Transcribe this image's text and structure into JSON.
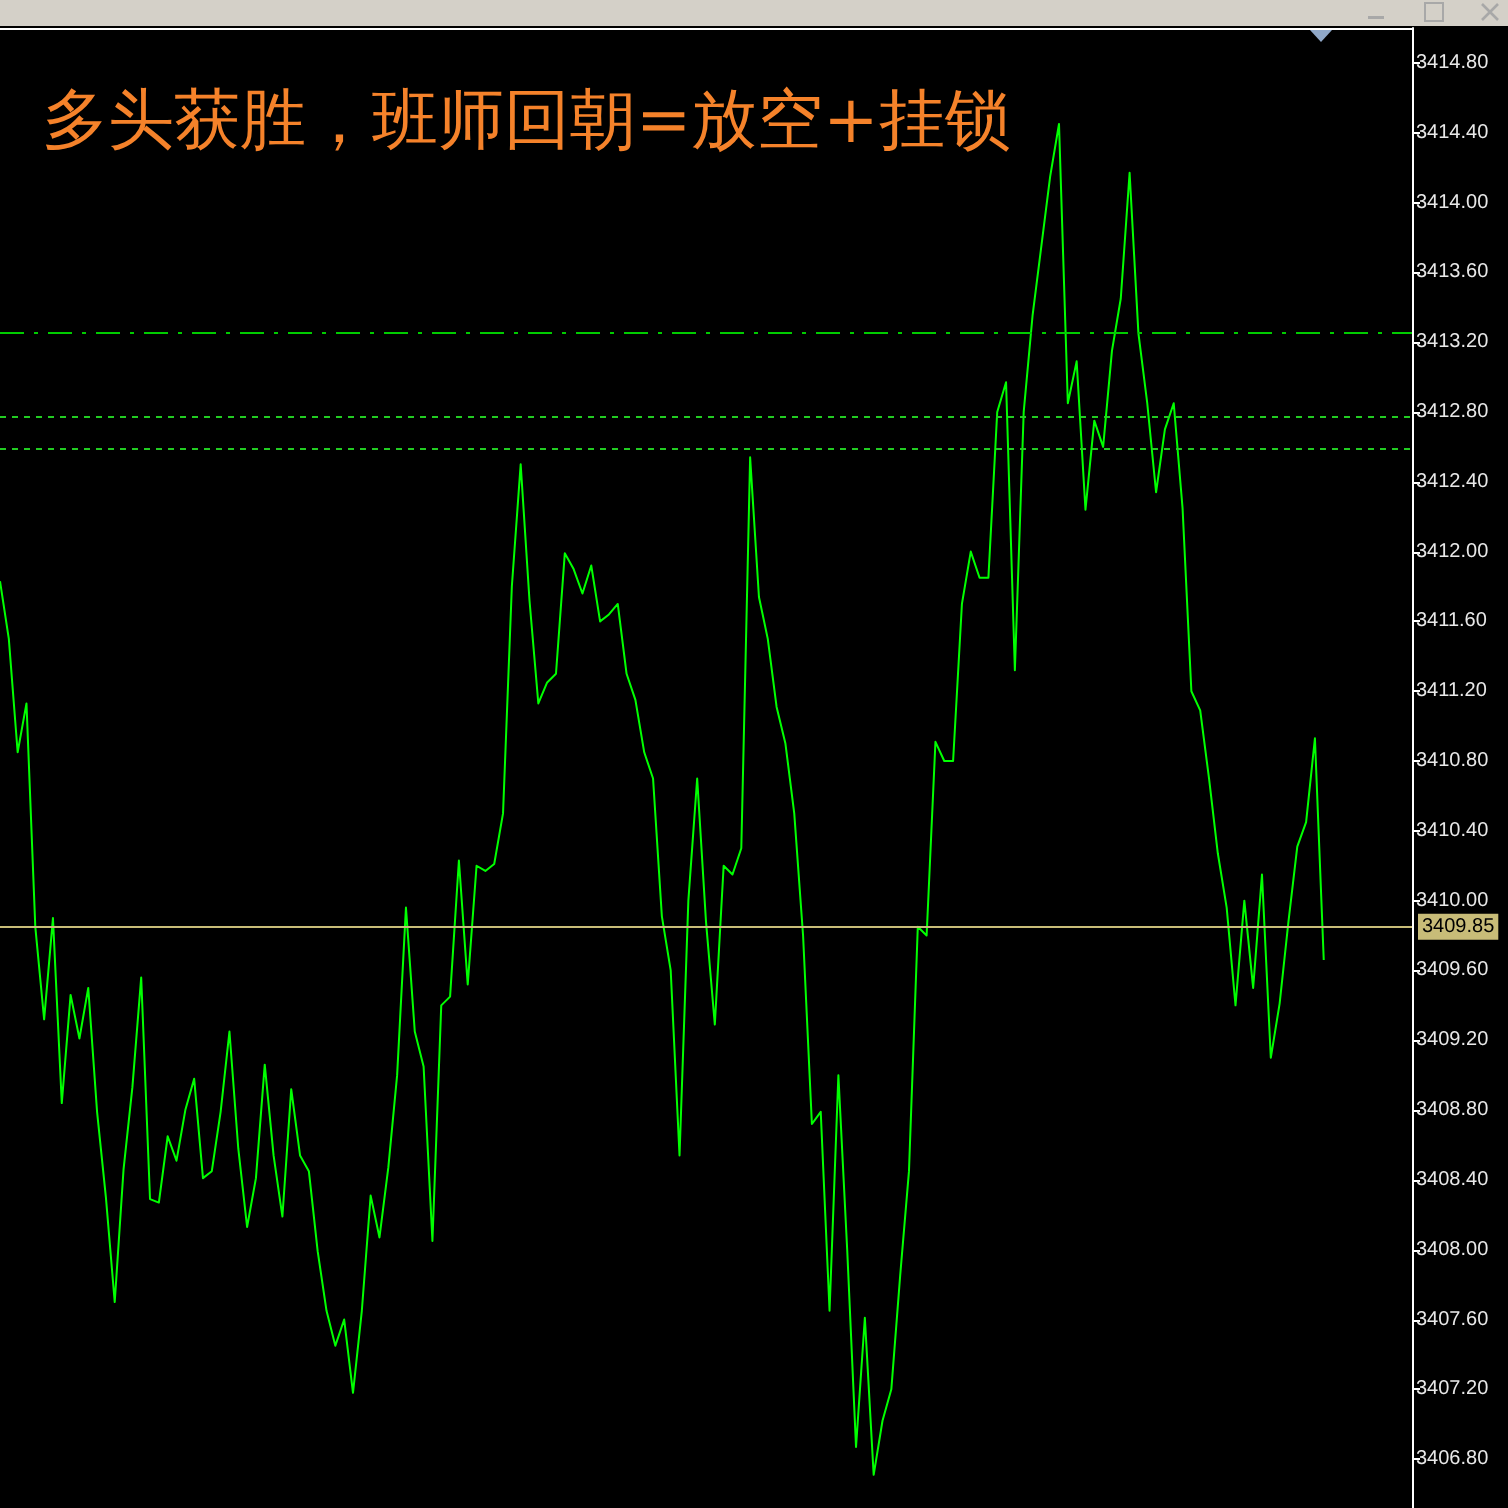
{
  "chart_data": {
    "type": "line",
    "title": "多头获胜，班师回朝=放空+挂锁",
    "categories": [
      null,
      null,
      null,
      null,
      null,
      null,
      null,
      null,
      null,
      null,
      null,
      null,
      null,
      null,
      null,
      null,
      null,
      null,
      null,
      null,
      null,
      null,
      null,
      null,
      null,
      null,
      null,
      null,
      null,
      null,
      null,
      null,
      null,
      null,
      null,
      null,
      null,
      null,
      null,
      null,
      null,
      null,
      null,
      null,
      null,
      null,
      null,
      null,
      null,
      null,
      null,
      null,
      null,
      null,
      null,
      null,
      null,
      null,
      null,
      null,
      null,
      null,
      null,
      null,
      null,
      null,
      null,
      null,
      null,
      null,
      null,
      null,
      null,
      null,
      null,
      null,
      null,
      null,
      null,
      null,
      null,
      null,
      null,
      null,
      null,
      null,
      null,
      null,
      null,
      null,
      null,
      null,
      null,
      null,
      null,
      null,
      null,
      null,
      null,
      null,
      null,
      null,
      null,
      null,
      null,
      null,
      null,
      null,
      null,
      null,
      null,
      null,
      null,
      null,
      null,
      null,
      null,
      null,
      null,
      null,
      null,
      null,
      null,
      null,
      null,
      null,
      null,
      null,
      null,
      null,
      null,
      null,
      null,
      null,
      null,
      null,
      null,
      null,
      null,
      null,
      null,
      null,
      null,
      null,
      null,
      null,
      null,
      null,
      null,
      null,
      null,
      null,
      null,
      null,
      null,
      null,
      null,
      null,
      null,
      null,
      null
    ],
    "series": [
      {
        "color": "#00ff00",
        "values": [
          3411.83,
          3411.5,
          3410.85,
          3411.13,
          3409.85,
          3409.32,
          3409.9,
          3408.84,
          3409.46,
          3409.21,
          3409.5,
          3408.79,
          3408.3,
          3407.7,
          3408.46,
          3408.93,
          3409.56,
          3408.29,
          3408.27,
          3408.65,
          3408.51,
          3408.8,
          3408.98,
          3408.41,
          3408.45,
          3408.79,
          3409.25,
          3408.58,
          3408.13,
          3408.41,
          3409.06,
          3408.54,
          3408.19,
          3408.92,
          3408.54,
          3408.45,
          3407.99,
          3407.65,
          3407.45,
          3407.6,
          3407.18,
          3407.65,
          3408.31,
          3408.07,
          3408.47,
          3409.0,
          3409.96,
          3409.25,
          3409.05,
          3408.05,
          3409.4,
          3409.45,
          3410.23,
          3409.52,
          3410.2,
          3410.17,
          3410.21,
          3410.5,
          3411.8,
          3412.5,
          3411.72,
          3411.13,
          3411.25,
          3411.3,
          3411.99,
          3411.9,
          3411.76,
          3411.92,
          3411.6,
          3411.64,
          3411.7,
          3411.3,
          3411.15,
          3410.85,
          3410.7,
          3409.91,
          3409.6,
          3408.54,
          3410.0,
          3410.7,
          3409.88,
          3409.29,
          3410.2,
          3410.15,
          3410.3,
          3412.54,
          3411.74,
          3411.5,
          3411.11,
          3410.9,
          3410.5,
          3409.8,
          3408.72,
          3408.79,
          3407.65,
          3409.0,
          3408.0,
          3406.87,
          3407.61,
          3406.71,
          3407.02,
          3407.2,
          3407.85,
          3408.45,
          3409.85,
          3409.8,
          3410.91,
          3410.8,
          3410.8,
          3411.7,
          3412.0,
          3411.85,
          3411.85,
          3412.8,
          3412.97,
          3411.32,
          3412.8,
          3413.35,
          3413.75,
          3414.15,
          3414.45,
          3412.85,
          3413.09,
          3412.24,
          3412.75,
          3412.6,
          3413.15,
          3413.45,
          3414.17,
          3413.25,
          3412.85,
          3412.34,
          3412.7,
          3412.85,
          3412.25,
          3411.2,
          3411.09,
          3410.7,
          3410.27,
          3409.96,
          3409.4,
          3410.0,
          3409.5,
          3410.15,
          3409.1,
          3409.41,
          3409.88,
          3410.31,
          3410.45,
          3410.93,
          3409.66,
          null,
          null,
          null,
          null,
          null,
          null,
          null,
          null,
          null,
          null
        ]
      }
    ],
    "ylim": [
      3406.52,
      3415.0
    ],
    "yticks": [
      {
        "value": 3406.8,
        "label": "3406.80"
      },
      {
        "value": 3407.2,
        "label": "3407.20"
      },
      {
        "value": 3407.6,
        "label": "3407.60"
      },
      {
        "value": 3408.0,
        "label": "3408.00"
      },
      {
        "value": 3408.4,
        "label": "3408.40"
      },
      {
        "value": 3408.8,
        "label": "3408.80"
      },
      {
        "value": 3409.2,
        "label": "3409.20"
      },
      {
        "value": 3409.6,
        "label": "3409.60"
      },
      {
        "value": 3410.0,
        "label": "3410.00"
      },
      {
        "value": 3410.4,
        "label": "3410.40"
      },
      {
        "value": 3410.8,
        "label": "3410.80"
      },
      {
        "value": 3411.2,
        "label": "3411.20"
      },
      {
        "value": 3411.6,
        "label": "3411.60"
      },
      {
        "value": 3412.0,
        "label": "3412.00"
      },
      {
        "value": 3412.4,
        "label": "3412.40"
      },
      {
        "value": 3412.8,
        "label": "3412.80"
      },
      {
        "value": 3413.2,
        "label": "3413.20"
      },
      {
        "value": 3413.6,
        "label": "3413.60"
      },
      {
        "value": 3414.0,
        "label": "3414.00"
      },
      {
        "value": 3414.4,
        "label": "3414.40"
      },
      {
        "value": 3414.8,
        "label": "3414.80"
      }
    ],
    "ref_lines": [
      {
        "axis": "y",
        "value": 3413.26,
        "color": "#00cc00",
        "line_style": "dashdot"
      },
      {
        "axis": "y",
        "value": 3412.77,
        "color": "#22cc22",
        "line_style": "dotted"
      },
      {
        "axis": "y",
        "value": 3412.59,
        "color": "#22cc22",
        "line_style": "dotted"
      },
      {
        "axis": "y",
        "value": 3409.85,
        "label": "3409.85",
        "color": "#c8bc78",
        "line_style": "solid"
      }
    ],
    "tick_labels": "y",
    "grid": false,
    "line_style": "solid"
  }
}
